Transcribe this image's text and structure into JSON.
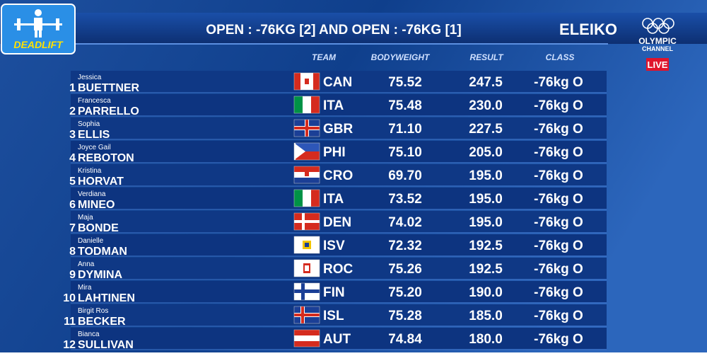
{
  "header": {
    "badge": "DEADLIFT",
    "title": "OPEN : -76KG [2] AND OPEN : -76KG [1]",
    "sponsor": "ELEIKO",
    "channel_1": "OLYMPIC",
    "channel_2": "CHANNEL",
    "live": "LIVE"
  },
  "table": {
    "columns": [
      "TEAM",
      "BODYWEIGHT",
      "RESULT",
      "CLASS"
    ],
    "rows": [
      {
        "rank": "1",
        "first": "Jessica",
        "last": "BUETTNER",
        "team": "CAN",
        "bodyweight": "75.52",
        "result": "247.5",
        "class": "-76kg O"
      },
      {
        "rank": "2",
        "first": "Francesca",
        "last": "PARRELLO",
        "team": "ITA",
        "bodyweight": "75.48",
        "result": "230.0",
        "class": "-76kg O"
      },
      {
        "rank": "3",
        "first": "Sophia",
        "last": "ELLIS",
        "team": "GBR",
        "bodyweight": "71.10",
        "result": "227.5",
        "class": "-76kg O"
      },
      {
        "rank": "4",
        "first": "Joyce Gail",
        "last": "REBOTON",
        "team": "PHI",
        "bodyweight": "75.10",
        "result": "205.0",
        "class": "-76kg O"
      },
      {
        "rank": "5",
        "first": "Kristina",
        "last": "HORVAT",
        "team": "CRO",
        "bodyweight": "69.70",
        "result": "195.0",
        "class": "-76kg O"
      },
      {
        "rank": "6",
        "first": "Verdiana",
        "last": "MINEO",
        "team": "ITA",
        "bodyweight": "73.52",
        "result": "195.0",
        "class": "-76kg O"
      },
      {
        "rank": "7",
        "first": "Maja",
        "last": "BONDE",
        "team": "DEN",
        "bodyweight": "74.02",
        "result": "195.0",
        "class": "-76kg O"
      },
      {
        "rank": "8",
        "first": "Danielle",
        "last": "TODMAN",
        "team": "ISV",
        "bodyweight": "72.32",
        "result": "192.5",
        "class": "-76kg O"
      },
      {
        "rank": "9",
        "first": "Anna",
        "last": "DYMINA",
        "team": "ROC",
        "bodyweight": "75.26",
        "result": "192.5",
        "class": "-76kg O"
      },
      {
        "rank": "10",
        "first": "Mira",
        "last": "LAHTINEN",
        "team": "FIN",
        "bodyweight": "75.20",
        "result": "190.0",
        "class": "-76kg O"
      },
      {
        "rank": "11",
        "first": "Birgit Ros",
        "last": "BECKER",
        "team": "ISL",
        "bodyweight": "75.28",
        "result": "185.0",
        "class": "-76kg O"
      },
      {
        "rank": "12",
        "first": "Bianca",
        "last": "SULLIVAN",
        "team": "AUT",
        "bodyweight": "74.84",
        "result": "180.0",
        "class": "-76kg O"
      }
    ]
  }
}
